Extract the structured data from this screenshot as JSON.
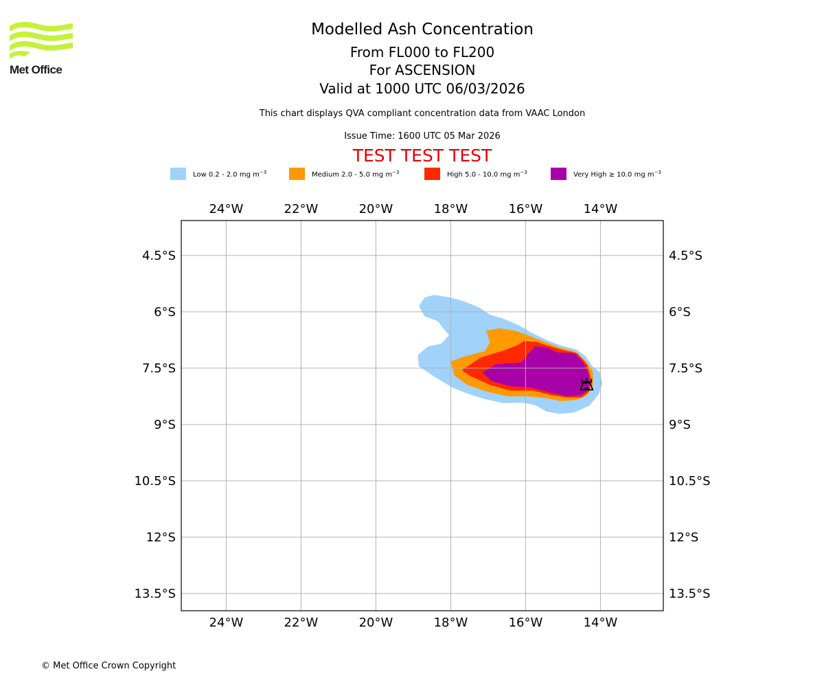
{
  "header": {
    "logo_text": "Met Office",
    "title": "Modelled Ash Concentration",
    "subtitle_levels": "From FL000 to FL200",
    "subtitle_volcano": "For ASCENSION",
    "subtitle_valid": "Valid at 1000 UTC 06/03/2026",
    "description": "This chart displays QVA compliant concentration data from VAAC London",
    "issue_time": "Issue Time: 1600 UTC 05 Mar 2026",
    "test_banner": "TEST TEST TEST"
  },
  "legend": [
    {
      "name": "Low",
      "label": "Low 0.2 - 2.0 mg m",
      "exp": "−3",
      "color": "#a0d2fa"
    },
    {
      "name": "Medium",
      "label": "Medium 2.0 - 5.0 mg m",
      "exp": "−3",
      "color": "#ff9a00"
    },
    {
      "name": "High",
      "label": "High 5.0 - 10.0 mg m",
      "exp": "−3",
      "color": "#ff2800"
    },
    {
      "name": "Very High",
      "label": "Very High  ≥  10.0 mg m",
      "exp": "−3",
      "color": "#a800a8"
    }
  ],
  "footer": {
    "copyright": "© Met Office Crown Copyright"
  },
  "chart_data": {
    "type": "map-contour",
    "title": "Modelled Ash Concentration",
    "lon_range": [
      -25.2,
      -12.32
    ],
    "lat_range": [
      -13.96,
      -3.57
    ],
    "lon_ticks": [
      -24,
      -22,
      -20,
      -18,
      -16,
      -14
    ],
    "lon_tick_labels": [
      "24°W",
      "22°W",
      "20°W",
      "18°W",
      "16°W",
      "14°W"
    ],
    "lat_ticks": [
      -4.5,
      -6,
      -7.5,
      -9,
      -10.5,
      -12,
      -13.5
    ],
    "lat_tick_labels": [
      "4.5°S",
      "6°S",
      "7.5°S",
      "9°S",
      "10.5°S",
      "12°S",
      "13.5°S"
    ],
    "grid": true,
    "volcano": {
      "name": "ASCENSION",
      "lon": -14.37,
      "lat": -7.93,
      "icon": "volcano-icon"
    },
    "contours": [
      {
        "level": "Low",
        "color": "#a0d2fa",
        "polygon": [
          [
            -18.85,
            -5.85
          ],
          [
            -18.7,
            -5.62
          ],
          [
            -18.45,
            -5.55
          ],
          [
            -18.0,
            -5.62
          ],
          [
            -17.65,
            -5.72
          ],
          [
            -17.25,
            -5.88
          ],
          [
            -16.95,
            -6.08
          ],
          [
            -16.6,
            -6.18
          ],
          [
            -16.2,
            -6.35
          ],
          [
            -15.85,
            -6.55
          ],
          [
            -15.45,
            -6.75
          ],
          [
            -15.05,
            -6.9
          ],
          [
            -14.65,
            -7.0
          ],
          [
            -14.4,
            -7.18
          ],
          [
            -14.22,
            -7.45
          ],
          [
            -14.02,
            -7.6
          ],
          [
            -13.95,
            -7.9
          ],
          [
            -14.05,
            -8.2
          ],
          [
            -14.3,
            -8.5
          ],
          [
            -14.7,
            -8.68
          ],
          [
            -15.1,
            -8.72
          ],
          [
            -15.45,
            -8.65
          ],
          [
            -15.75,
            -8.48
          ],
          [
            -16.1,
            -8.42
          ],
          [
            -16.6,
            -8.43
          ],
          [
            -17.1,
            -8.32
          ],
          [
            -17.55,
            -8.18
          ],
          [
            -17.95,
            -8.02
          ],
          [
            -18.45,
            -7.72
          ],
          [
            -18.85,
            -7.45
          ],
          [
            -18.88,
            -7.15
          ],
          [
            -18.6,
            -6.92
          ],
          [
            -18.25,
            -6.85
          ],
          [
            -18.05,
            -6.62
          ],
          [
            -18.35,
            -6.25
          ],
          [
            -18.7,
            -6.12
          ]
        ]
      },
      {
        "level": "Medium",
        "color": "#ff9a00",
        "polygon": [
          [
            -17.05,
            -6.5
          ],
          [
            -16.7,
            -6.44
          ],
          [
            -16.3,
            -6.5
          ],
          [
            -15.95,
            -6.62
          ],
          [
            -15.55,
            -6.78
          ],
          [
            -15.1,
            -6.95
          ],
          [
            -14.7,
            -7.05
          ],
          [
            -14.4,
            -7.3
          ],
          [
            -14.2,
            -7.6
          ],
          [
            -14.2,
            -7.95
          ],
          [
            -14.35,
            -8.22
          ],
          [
            -14.65,
            -8.35
          ],
          [
            -15.05,
            -8.38
          ],
          [
            -15.45,
            -8.3
          ],
          [
            -15.95,
            -8.25
          ],
          [
            -16.5,
            -8.25
          ],
          [
            -17.05,
            -8.12
          ],
          [
            -17.55,
            -7.95
          ],
          [
            -17.9,
            -7.7
          ],
          [
            -18.0,
            -7.32
          ],
          [
            -17.6,
            -7.18
          ],
          [
            -17.1,
            -7.05
          ],
          [
            -16.95,
            -6.82
          ]
        ]
      },
      {
        "level": "High",
        "color": "#ff2800",
        "polygon": [
          [
            -16.05,
            -6.78
          ],
          [
            -15.7,
            -6.8
          ],
          [
            -15.35,
            -6.92
          ],
          [
            -15.0,
            -7.02
          ],
          [
            -14.62,
            -7.1
          ],
          [
            -14.35,
            -7.42
          ],
          [
            -14.25,
            -7.8
          ],
          [
            -14.3,
            -8.12
          ],
          [
            -14.5,
            -8.28
          ],
          [
            -14.9,
            -8.28
          ],
          [
            -15.3,
            -8.22
          ],
          [
            -15.8,
            -8.1
          ],
          [
            -16.4,
            -8.1
          ],
          [
            -16.95,
            -7.95
          ],
          [
            -17.5,
            -7.7
          ],
          [
            -17.7,
            -7.55
          ],
          [
            -17.2,
            -7.22
          ],
          [
            -16.55,
            -7.02
          ],
          [
            -16.2,
            -6.88
          ]
        ]
      },
      {
        "level": "Very High",
        "color": "#a800a8",
        "polygon": [
          [
            -15.75,
            -6.92
          ],
          [
            -15.45,
            -6.95
          ],
          [
            -15.15,
            -7.08
          ],
          [
            -14.7,
            -7.1
          ],
          [
            -14.45,
            -7.35
          ],
          [
            -14.3,
            -7.7
          ],
          [
            -14.3,
            -8.05
          ],
          [
            -14.5,
            -8.22
          ],
          [
            -14.9,
            -8.25
          ],
          [
            -15.35,
            -8.15
          ],
          [
            -15.85,
            -8.02
          ],
          [
            -16.4,
            -7.98
          ],
          [
            -16.9,
            -7.85
          ],
          [
            -17.15,
            -7.62
          ],
          [
            -16.8,
            -7.4
          ],
          [
            -16.1,
            -7.35
          ],
          [
            -15.95,
            -7.15
          ]
        ]
      }
    ]
  }
}
